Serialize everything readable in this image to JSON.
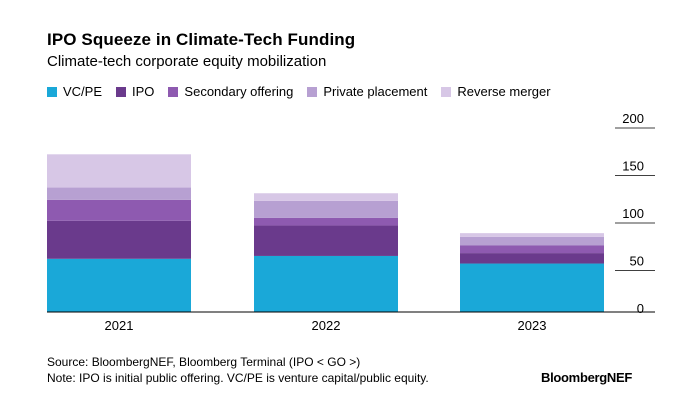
{
  "title": "IPO Squeeze in Climate-Tech Funding",
  "subtitle": "Climate-tech corporate equity mobilization",
  "source": "Source: BloombergNEF, Bloomberg Terminal (IPO < GO >)",
  "note": "Note: IPO is initial public offering. VC/PE is venture capital/public equity.",
  "brand": "BloombergNEF",
  "chart_data": {
    "type": "bar",
    "stacked": true,
    "categories": [
      "2021",
      "2022",
      "2023"
    ],
    "ylim": [
      0,
      200
    ],
    "yticks": [
      0,
      50,
      100,
      150,
      200
    ],
    "y_axis_position": "right",
    "grid": true,
    "legend_position": "top",
    "series": [
      {
        "name": "VC/PE",
        "color": "#1aa8d8",
        "values": [
          56,
          59,
          51
        ]
      },
      {
        "name": "IPO",
        "color": "#6a3a8c",
        "values": [
          40,
          32,
          11
        ]
      },
      {
        "name": "Secondary offering",
        "color": "#8e5ab0",
        "values": [
          22,
          8,
          8
        ]
      },
      {
        "name": "Private placement",
        "color": "#b7a0d2",
        "values": [
          13,
          18,
          9
        ]
      },
      {
        "name": "Reverse merger",
        "color": "#d7c7e6",
        "values": [
          35,
          8,
          4
        ]
      }
    ]
  }
}
